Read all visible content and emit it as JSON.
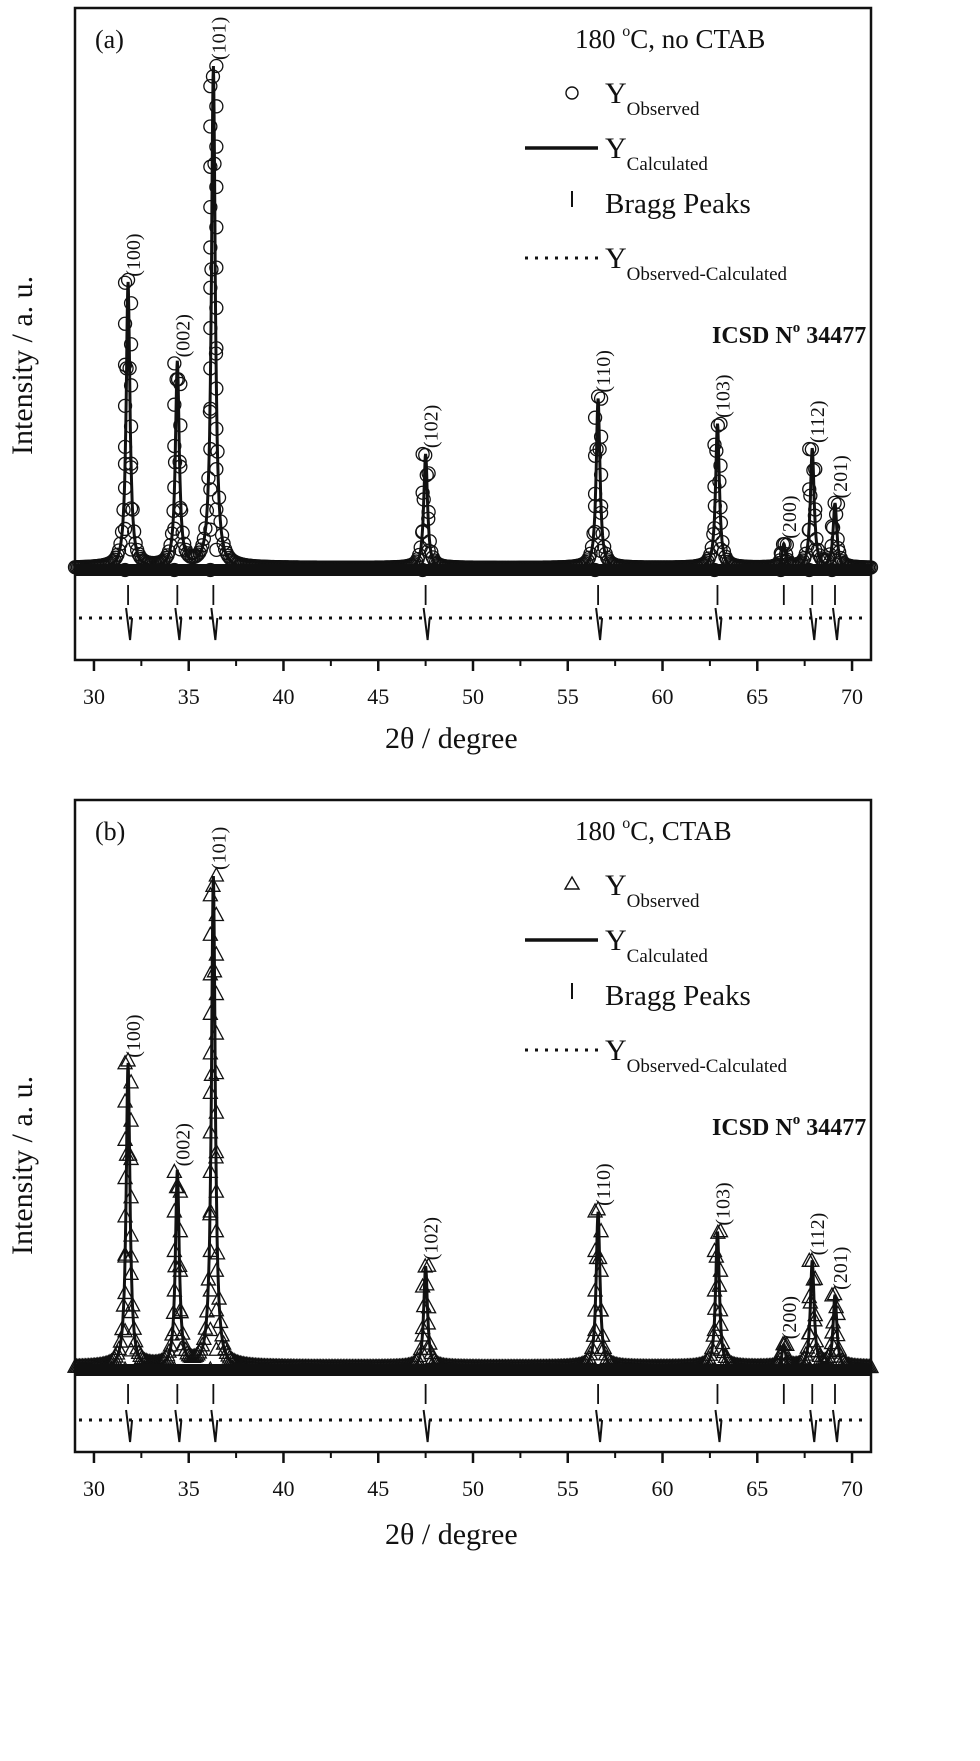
{
  "chart_data": [
    {
      "type": "line",
      "panel_label": "(a)",
      "title": "180 °C, no CTAB",
      "annotation": "ICSD N° 34477",
      "xlabel": "2θ / degree",
      "ylabel": "Intensity / a. u.",
      "xlim": [
        29,
        71
      ],
      "x_ticks": [
        30,
        35,
        40,
        45,
        50,
        55,
        60,
        65,
        70
      ],
      "y_ticks": [],
      "grid": false,
      "legend_position": "upper right",
      "marker": "circle",
      "legend": [
        {
          "symbol": "circle",
          "label": "Y",
          "sub": "Observed"
        },
        {
          "symbol": "solid-line",
          "label": "Y",
          "sub": "Calculated"
        },
        {
          "symbol": "tick",
          "label": "Bragg Peaks",
          "sub": ""
        },
        {
          "symbol": "dotted-line",
          "label": "Y",
          "sub": "Observed-Calculated"
        }
      ],
      "peaks": [
        {
          "hkl": "(100)",
          "two_theta": 31.8,
          "intensity": 57
        },
        {
          "hkl": "(002)",
          "two_theta": 34.4,
          "intensity": 41
        },
        {
          "hkl": "(101)",
          "two_theta": 36.3,
          "intensity": 100
        },
        {
          "hkl": "(102)",
          "two_theta": 47.5,
          "intensity": 23
        },
        {
          "hkl": "(110)",
          "two_theta": 56.6,
          "intensity": 34
        },
        {
          "hkl": "(103)",
          "two_theta": 62.9,
          "intensity": 29
        },
        {
          "hkl": "(200)",
          "two_theta": 66.4,
          "intensity": 5
        },
        {
          "hkl": "(112)",
          "two_theta": 67.9,
          "intensity": 24
        },
        {
          "hkl": "(201)",
          "two_theta": 69.1,
          "intensity": 13
        }
      ],
      "bragg_positions": [
        31.8,
        34.4,
        36.3,
        47.5,
        56.6,
        62.9,
        66.4,
        67.9,
        69.1
      ]
    },
    {
      "type": "line",
      "panel_label": "(b)",
      "title": "180 °C, CTAB",
      "annotation": "ICSD N° 34477",
      "xlabel": "2θ / degree",
      "ylabel": "Intensity / a. u.",
      "xlim": [
        29,
        71
      ],
      "x_ticks": [
        30,
        35,
        40,
        45,
        50,
        55,
        60,
        65,
        70
      ],
      "y_ticks": [],
      "grid": false,
      "legend_position": "upper right",
      "marker": "triangle",
      "legend": [
        {
          "symbol": "triangle",
          "label": "Y",
          "sub": "Observed"
        },
        {
          "symbol": "solid-line",
          "label": "Y",
          "sub": "Calculated"
        },
        {
          "symbol": "tick",
          "label": "Bragg Peaks",
          "sub": ""
        },
        {
          "symbol": "dotted-line",
          "label": "Y",
          "sub": "Observed-Calculated"
        }
      ],
      "peaks": [
        {
          "hkl": "(100)",
          "two_theta": 31.8,
          "intensity": 62
        },
        {
          "hkl": "(002)",
          "two_theta": 34.4,
          "intensity": 40
        },
        {
          "hkl": "(101)",
          "two_theta": 36.3,
          "intensity": 100
        },
        {
          "hkl": "(102)",
          "two_theta": 47.5,
          "intensity": 21
        },
        {
          "hkl": "(110)",
          "two_theta": 56.6,
          "intensity": 32
        },
        {
          "hkl": "(103)",
          "two_theta": 62.9,
          "intensity": 28
        },
        {
          "hkl": "(200)",
          "two_theta": 66.4,
          "intensity": 5
        },
        {
          "hkl": "(112)",
          "two_theta": 67.9,
          "intensity": 22
        },
        {
          "hkl": "(201)",
          "two_theta": 69.1,
          "intensity": 15
        }
      ],
      "bragg_positions": [
        31.8,
        34.4,
        36.3,
        47.5,
        56.6,
        62.9,
        66.4,
        67.9,
        69.1
      ]
    }
  ]
}
